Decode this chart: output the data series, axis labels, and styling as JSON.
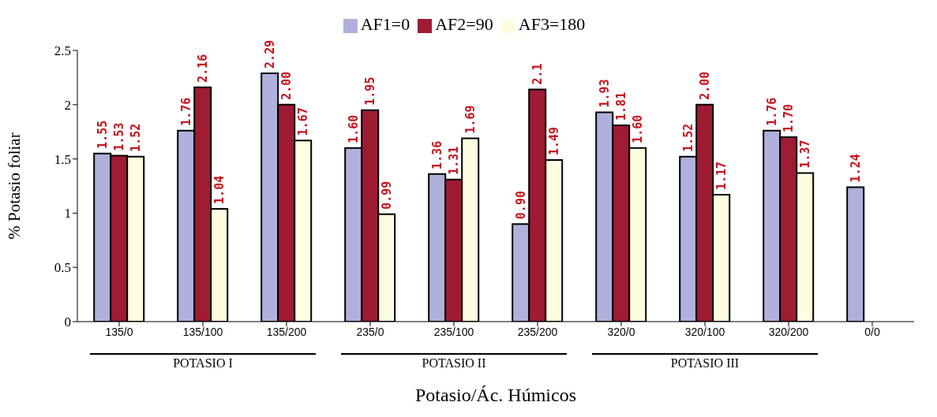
{
  "chart_data": {
    "type": "bar",
    "xlabel": "Potasio/Ác. Húmicos",
    "ylabel": "% Potasio foliar",
    "categories": [
      "135/0",
      "135/100",
      "135/200",
      "235/0",
      "235/100",
      "235/200",
      "320/0",
      "320/100",
      "320/200",
      "0/0"
    ],
    "series": [
      {
        "name": "AF1=0",
        "color": "#b0b0dc",
        "values": [
          1.55,
          1.76,
          2.29,
          1.6,
          1.36,
          0.9,
          1.93,
          1.52,
          1.76,
          1.24
        ],
        "value_labels": [
          "1.55",
          "1.76",
          "2.29",
          "1.60",
          "1.36",
          "0.90",
          "1.93",
          "1.52",
          "1.76",
          "1.24"
        ]
      },
      {
        "name": "AF2=90",
        "color": "#9e1b32",
        "values": [
          1.53,
          2.16,
          2.0,
          1.95,
          1.31,
          2.14,
          1.81,
          2.0,
          1.7,
          null
        ],
        "value_labels": [
          "1.53",
          "2.16",
          "2.00",
          "1.95",
          "1.31",
          "2.1",
          "1.81",
          "2.00",
          "1.70",
          null
        ]
      },
      {
        "name": "AF3=180",
        "color": "#fffde0",
        "values": [
          1.52,
          1.04,
          1.67,
          0.99,
          1.69,
          1.49,
          1.6,
          1.17,
          1.37,
          null
        ],
        "value_labels": [
          "1.52",
          "1.04",
          "1.67",
          "0.99",
          "1.69",
          "1.49",
          "1.60",
          "1.17",
          "1.37",
          null
        ]
      }
    ],
    "ylim": [
      0,
      2.5
    ],
    "yticks": [
      0,
      0.5,
      1,
      1.5,
      2,
      2.5
    ],
    "legend": "top",
    "grid": false,
    "annotations": [
      "POTASIO I",
      "POTASIO II",
      "POTASIO III"
    ]
  }
}
